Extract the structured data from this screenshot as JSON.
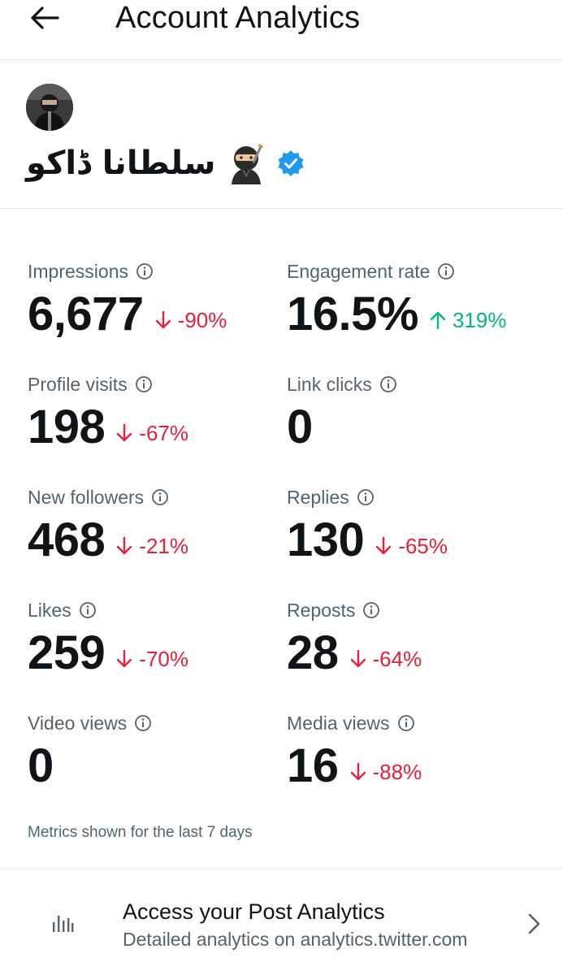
{
  "header": {
    "title": "Account Analytics",
    "back_icon": "arrow-left-icon"
  },
  "profile": {
    "display_name": "سلطانا ڈاکو",
    "emoji_icon": "ninja-emoji-icon",
    "verified_icon": "verified-badge-icon",
    "verified_color": "#1d9bf0"
  },
  "metrics": {
    "impressions": {
      "label": "Impressions",
      "value": "6,677",
      "delta": "-90%",
      "trend": "down"
    },
    "engagement_rate": {
      "label": "Engagement rate",
      "value": "16.5%",
      "delta": "319%",
      "trend": "up"
    },
    "profile_visits": {
      "label": "Profile visits",
      "value": "198",
      "delta": "-67%",
      "trend": "down"
    },
    "link_clicks": {
      "label": "Link clicks",
      "value": "0"
    },
    "new_followers": {
      "label": "New followers",
      "value": "468",
      "delta": "-21%",
      "trend": "down"
    },
    "replies": {
      "label": "Replies",
      "value": "130",
      "delta": "-65%",
      "trend": "down"
    },
    "likes": {
      "label": "Likes",
      "value": "259",
      "delta": "-70%",
      "trend": "down"
    },
    "reposts": {
      "label": "Reposts",
      "value": "28",
      "delta": "-64%",
      "trend": "down"
    },
    "video_views": {
      "label": "Video views",
      "value": "0"
    },
    "media_views": {
      "label": "Media views",
      "value": "16",
      "delta": "-88%",
      "trend": "down"
    }
  },
  "colors": {
    "down": "#e8203a",
    "up": "#00ba7c",
    "secondary_text": "#536471",
    "primary_text": "#0f1419"
  },
  "footnote": "Metrics shown for the last 7 days",
  "post_analytics": {
    "title": "Access your Post Analytics",
    "subtitle": "Detailed analytics on analytics.twitter.com",
    "icon": "bar-chart-icon",
    "chevron_icon": "chevron-right-icon"
  }
}
